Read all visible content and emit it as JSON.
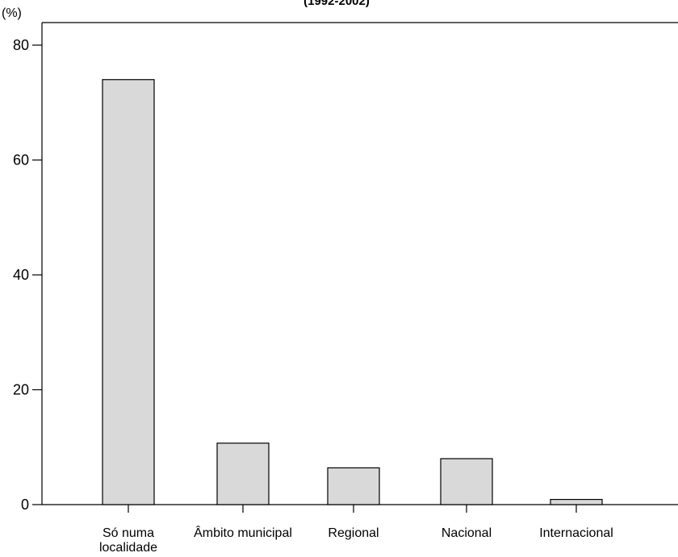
{
  "chart_data": {
    "type": "bar",
    "subtitle": "(1992-2002)",
    "ylabel": "(%)",
    "categories": [
      [
        "Só numa",
        "localidade"
      ],
      [
        "Âmbito municipal"
      ],
      [
        "Regional"
      ],
      [
        "Nacional"
      ],
      [
        "Internacional"
      ]
    ],
    "values": [
      74,
      10.7,
      6.4,
      8,
      0.9
    ],
    "ylim": [
      0,
      85
    ],
    "yticks": [
      0,
      20,
      40,
      60,
      80
    ],
    "bar_color": "#d9d9d9",
    "bar_edge_color": "#000000",
    "grid": false,
    "legend": "none"
  }
}
